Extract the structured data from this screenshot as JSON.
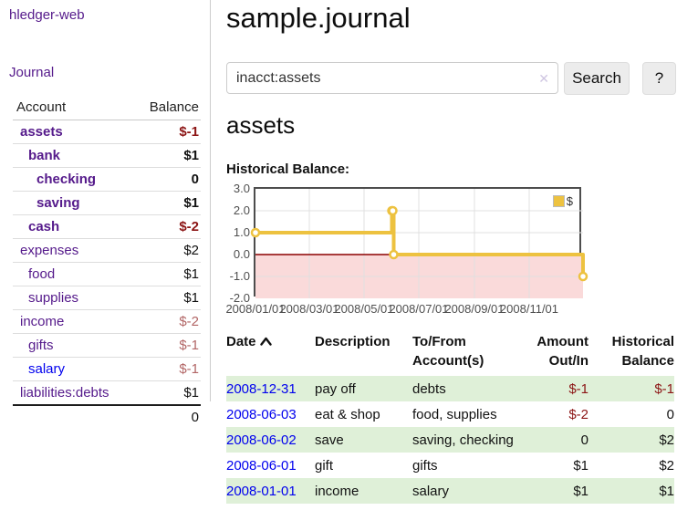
{
  "colors": {
    "link_purple": "#551A8B",
    "link_blue": "#0000EE",
    "negative_strong": "#8C1515",
    "negative_soft": "#B26666",
    "row_green": "#DFF0D8",
    "chart_line": "#EDC240",
    "chart_negative_region": "#FADADA",
    "chart_zero_line": "#8B0000"
  },
  "app": {
    "brand": "hledger-web",
    "nav_journal": "Journal"
  },
  "sidebar": {
    "header": {
      "account": "Account",
      "balance": "Balance"
    },
    "accounts": [
      {
        "name": "assets",
        "balance": "$-1",
        "depth": 0,
        "bold": true,
        "tone": "neg-strong"
      },
      {
        "name": "bank",
        "balance": "$1",
        "depth": 1,
        "bold": true,
        "tone": ""
      },
      {
        "name": "checking",
        "balance": "0",
        "depth": 2,
        "bold": true,
        "tone": ""
      },
      {
        "name": "saving",
        "balance": "$1",
        "depth": 2,
        "bold": true,
        "tone": ""
      },
      {
        "name": "cash",
        "balance": "$-2",
        "depth": 1,
        "bold": true,
        "tone": "neg-strong"
      },
      {
        "name": "expenses",
        "balance": "$2",
        "depth": 0,
        "bold": false,
        "tone": ""
      },
      {
        "name": "food",
        "balance": "$1",
        "depth": 1,
        "bold": false,
        "tone": ""
      },
      {
        "name": "supplies",
        "balance": "$1",
        "depth": 1,
        "bold": false,
        "tone": ""
      },
      {
        "name": "income",
        "balance": "$-2",
        "depth": 0,
        "bold": false,
        "tone": "neg-soft"
      },
      {
        "name": "gifts",
        "balance": "$-1",
        "depth": 1,
        "bold": false,
        "tone": "neg-soft"
      },
      {
        "name": "salary",
        "balance": "$-1",
        "depth": 1,
        "bold": false,
        "tone": "neg-soft",
        "blue": true
      },
      {
        "name": "liabilities:debts",
        "balance": "$1",
        "depth": 0,
        "bold": false,
        "tone": ""
      }
    ],
    "total": "0"
  },
  "main": {
    "title": "sample.journal",
    "search": {
      "value": "inacct:assets",
      "clear": "✕",
      "button": "Search",
      "help": "?"
    },
    "account_heading": "assets",
    "chart_title": "Historical Balance:"
  },
  "chart_data": {
    "type": "line",
    "step": true,
    "title": "Historical Balance:",
    "legend": "$",
    "legend_position": "top-right",
    "grid": true,
    "xrange": [
      "2008/01/01",
      "2008/12/31"
    ],
    "ylim": [
      -2,
      3
    ],
    "yticks": [
      "3.0",
      "2.0",
      "1.0",
      "0.0",
      "-1.0",
      "-2.0"
    ],
    "xticks": [
      "2008/01/01",
      "2008/03/01",
      "2008/05/01",
      "2008/07/01",
      "2008/09/01",
      "2008/11/01"
    ],
    "series": [
      {
        "name": "$",
        "points": [
          [
            "2008/01/01",
            1
          ],
          [
            "2008/06/01",
            2
          ],
          [
            "2008/06/02",
            2
          ],
          [
            "2008/06/03",
            0
          ],
          [
            "2008/12/31",
            -1
          ]
        ]
      }
    ]
  },
  "register": {
    "headers": {
      "date": "Date",
      "description": "Description",
      "accounts": "To/From Account(s)",
      "amount": "Amount Out/In",
      "balance": "Historical Balance"
    },
    "rows": [
      {
        "date": "2008-12-31",
        "description": "pay off",
        "accounts": "debts",
        "amount": "$-1",
        "amount_neg": true,
        "balance": "$-1",
        "balance_neg": true
      },
      {
        "date": "2008-06-03",
        "description": "eat & shop",
        "accounts": "food, supplies",
        "amount": "$-2",
        "amount_neg": true,
        "balance": "0",
        "balance_neg": false
      },
      {
        "date": "2008-06-02",
        "description": "save",
        "accounts": "saving, checking",
        "amount": "0",
        "amount_neg": false,
        "balance": "$2",
        "balance_neg": false
      },
      {
        "date": "2008-06-01",
        "description": "gift",
        "accounts": "gifts",
        "amount": "$1",
        "amount_neg": false,
        "balance": "$2",
        "balance_neg": false
      },
      {
        "date": "2008-01-01",
        "description": "income",
        "accounts": "salary",
        "amount": "$1",
        "amount_neg": false,
        "balance": "$1",
        "balance_neg": false
      }
    ]
  }
}
